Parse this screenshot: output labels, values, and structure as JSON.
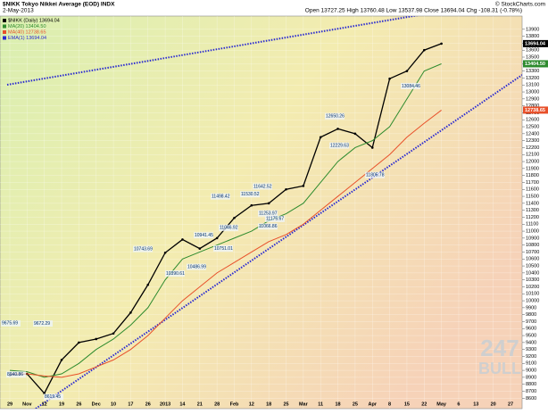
{
  "chart_data": {
    "type": "line",
    "title": "$NIKK Tokyo Nikkei Average (EOD) INDX",
    "date": "2-May-2013",
    "quote": "Open 13727.25 High 13760.48 Low 13537.98 Close 13694.04 Chg -108.31 (-0.78%)",
    "credit": "© StockCharts.com",
    "watermark": [
      "247",
      "BULL"
    ],
    "legend_labels": [
      "$NIKK (Daily) 13694.04",
      "MA(20) 13404.50",
      "MA(40) 12738.65",
      "EMA(1) 13694.04"
    ],
    "categories": [
      "29",
      "Nov",
      "12",
      "19",
      "26",
      "Dec",
      "10",
      "17",
      "26",
      "2013",
      "14",
      "21",
      "28",
      "Feb",
      "12",
      "18",
      "25",
      "Mar",
      "11",
      "18",
      "25",
      "Apr",
      "8",
      "15",
      "22",
      "May",
      "6",
      "13",
      "20",
      "27"
    ],
    "series": [
      {
        "name": "$NIKK (Daily)",
        "color": "#000000",
        "values": [
          8930,
          8950,
          8670,
          9150,
          9400,
          9450,
          9530,
          9830,
          10230,
          10690,
          10880,
          10750,
          10900,
          11190,
          11370,
          11400,
          11600,
          11650,
          12350,
          12470,
          12400,
          12200,
          13190,
          13300,
          13600,
          13694.04,
          null,
          null,
          null,
          null
        ]
      },
      {
        "name": "MA(20)",
        "color": "#2e8b2e",
        "values": [
          9000,
          8980,
          8900,
          8950,
          9100,
          9300,
          9450,
          9650,
          9900,
          10300,
          10600,
          10700,
          10800,
          10900,
          11000,
          11150,
          11250,
          11400,
          11700,
          12000,
          12200,
          12300,
          12500,
          12900,
          13300,
          13404.5,
          null,
          null,
          null,
          null
        ]
      },
      {
        "name": "MA(40)",
        "color": "#e8502a",
        "values": [
          8950,
          8950,
          8920,
          8900,
          8950,
          9050,
          9150,
          9300,
          9500,
          9750,
          10000,
          10200,
          10400,
          10550,
          10700,
          10850,
          10950,
          11100,
          11300,
          11500,
          11700,
          11900,
          12100,
          12350,
          12550,
          12738.65,
          null,
          null,
          null,
          null
        ]
      }
    ],
    "annotations": [
      9675.69,
      9672.29,
      8940.86,
      8619.45,
      10743.69,
      10390.61,
      10486.99,
      10941.45,
      10751.01,
      11498.42,
      11046.92,
      11530.52,
      11642.52,
      11066.86,
      11253.97,
      11175.67,
      12650.26,
      12229.63,
      13084.46,
      11805.78
    ],
    "price_tags": [
      {
        "value": 13694.04,
        "label": "13694.04"
      },
      {
        "value": 13404.5,
        "label": "13404.50"
      },
      {
        "value": 12738.65,
        "label": "12738.65"
      }
    ],
    "ylim": [
      8450,
      14090
    ],
    "yticks": [
      8600,
      8700,
      8800,
      8900,
      9000,
      9100,
      9200,
      9300,
      9400,
      9500,
      9600,
      9700,
      9800,
      9900,
      10000,
      10100,
      10200,
      10300,
      10400,
      10500,
      10600,
      10700,
      10800,
      10900,
      11000,
      11100,
      11200,
      11300,
      11400,
      11500,
      11600,
      11700,
      11800,
      11900,
      12000,
      12100,
      12200,
      12300,
      12400,
      12500,
      12600,
      12700,
      12800,
      12900,
      13000,
      13100,
      13200,
      13300,
      13400,
      13500,
      13600,
      13700,
      13800,
      13900
    ],
    "grid": true
  }
}
